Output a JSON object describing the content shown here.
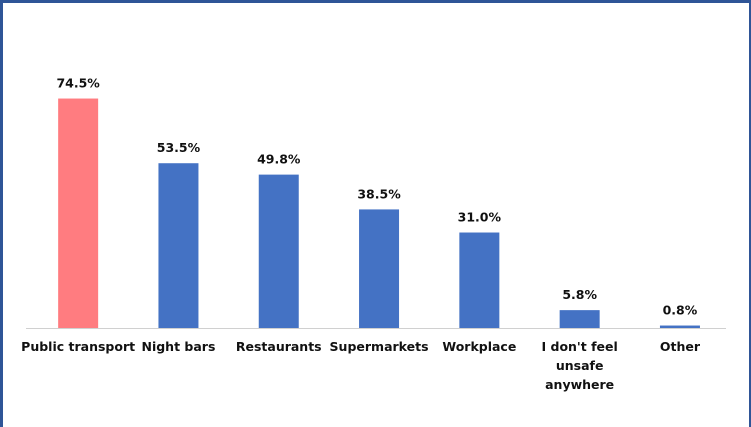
{
  "chart_data": {
    "type": "bar",
    "categories": [
      [
        "Public transport"
      ],
      [
        "Night bars"
      ],
      [
        "Restaurants"
      ],
      [
        "Supermarkets"
      ],
      [
        "Workplace"
      ],
      [
        "I don't feel",
        "unsafe",
        "anywhere"
      ],
      [
        "Other"
      ]
    ],
    "values": [
      74.5,
      53.5,
      49.8,
      38.5,
      31.0,
      5.8,
      0.8
    ],
    "value_labels": [
      "74.5%",
      "53.5%",
      "49.8%",
      "38.5%",
      "31.0%",
      "5.8%",
      "0.8%"
    ],
    "colors": [
      "#ff7c80",
      "#4472c4",
      "#4472c4",
      "#4472c4",
      "#4472c4",
      "#4472c4",
      "#4472c4"
    ],
    "ylim": [
      0,
      100
    ],
    "grid": false,
    "legend": "none"
  }
}
